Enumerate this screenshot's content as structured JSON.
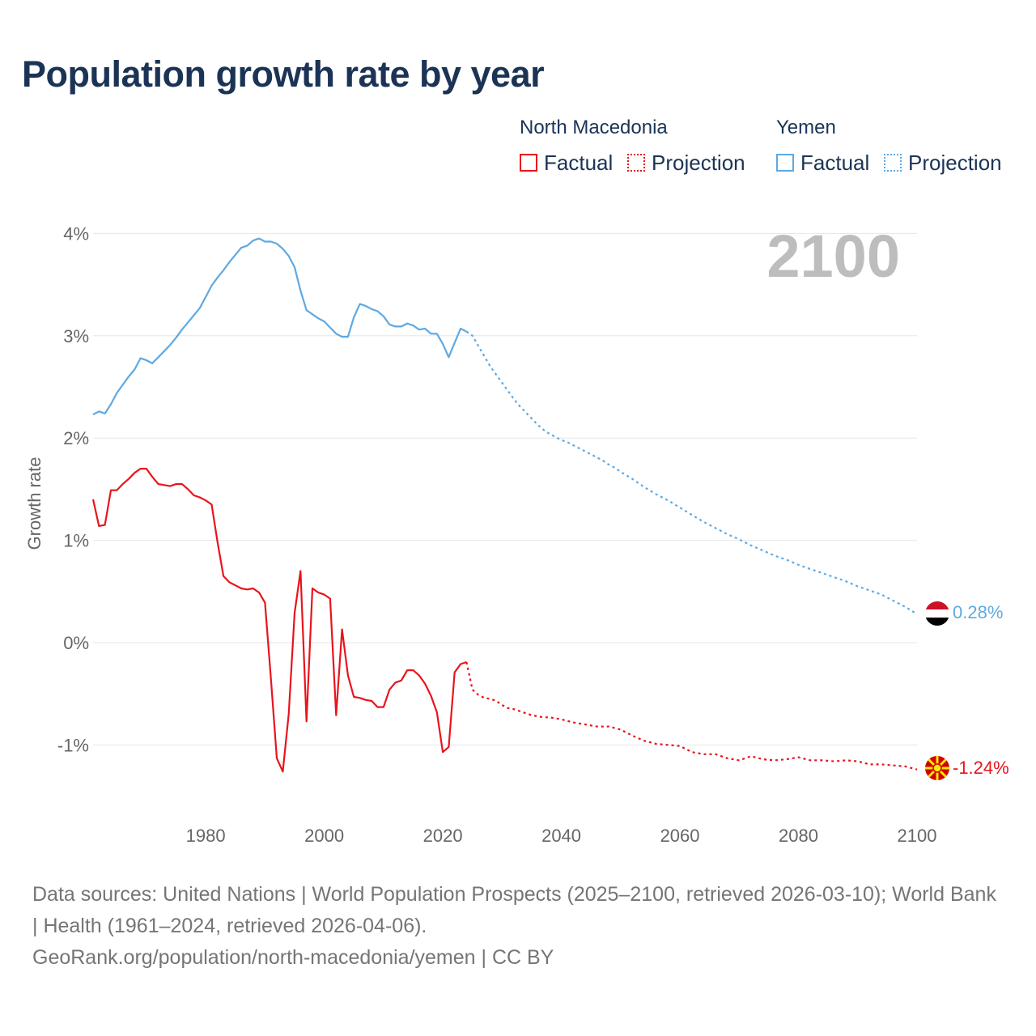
{
  "title": "Population growth rate by year",
  "legend": {
    "groups": [
      {
        "name": "North Macedonia",
        "factual_label": "Factual",
        "projection_label": "Projection"
      },
      {
        "name": "Yemen",
        "factual_label": "Factual",
        "projection_label": "Projection"
      }
    ]
  },
  "footer": {
    "sources": "Data sources: United Nations | World Population Prospects (2025–2100, retrieved 2026-03-10); World Bank | Health (1961–2024, retrieved 2026-04-06).",
    "link": "GeoRank.org/population/north-macedonia/yemen | CC BY"
  },
  "chart_data": {
    "type": "line",
    "title": "Population growth rate by year",
    "xlabel": "",
    "ylabel": "Growth rate",
    "year_watermark": "2100",
    "xlim": [
      1961,
      2100
    ],
    "ylim": [
      -1.6,
      4.2
    ],
    "x_ticks": [
      1980,
      2000,
      2020,
      2040,
      2060,
      2080,
      2100
    ],
    "x_tick_labels": [
      "1980",
      "2000",
      "2020",
      "2040",
      "2060",
      "2080",
      "2100"
    ],
    "y_ticks": [
      -1,
      0,
      1,
      2,
      3,
      4
    ],
    "y_tick_labels": [
      "-1%",
      "0%",
      "1%",
      "2%",
      "3%",
      "4%"
    ],
    "grid": true,
    "colors": {
      "north_macedonia": "#e8141c",
      "yemen": "#5ea9e2",
      "watermark": "#bdbdbd",
      "axis_text": "#666666",
      "grid": "#e6e6e6"
    },
    "series": [
      {
        "name": "Yemen",
        "key": "yemen",
        "end_label": "0.28%",
        "factual": {
          "x": [
            1961,
            1962,
            1963,
            1964,
            1965,
            1966,
            1967,
            1968,
            1969,
            1970,
            1971,
            1972,
            1973,
            1974,
            1975,
            1976,
            1977,
            1978,
            1979,
            1980,
            1981,
            1982,
            1983,
            1984,
            1985,
            1986,
            1987,
            1988,
            1989,
            1990,
            1991,
            1992,
            1993,
            1994,
            1995,
            1996,
            1997,
            1998,
            1999,
            2000,
            2001,
            2002,
            2003,
            2004,
            2005,
            2006,
            2007,
            2008,
            2009,
            2010,
            2011,
            2012,
            2013,
            2014,
            2015,
            2016,
            2017,
            2018,
            2019,
            2020,
            2021,
            2022,
            2023,
            2024
          ],
          "y": [
            2.23,
            2.26,
            2.24,
            2.33,
            2.44,
            2.52,
            2.6,
            2.67,
            2.78,
            2.76,
            2.73,
            2.79,
            2.85,
            2.91,
            2.98,
            3.06,
            3.13,
            3.2,
            3.27,
            3.38,
            3.49,
            3.57,
            3.64,
            3.72,
            3.79,
            3.86,
            3.88,
            3.93,
            3.95,
            3.92,
            3.92,
            3.9,
            3.85,
            3.78,
            3.67,
            3.44,
            3.25,
            3.21,
            3.17,
            3.14,
            3.08,
            3.02,
            2.99,
            2.99,
            3.18,
            3.31,
            3.29,
            3.26,
            3.24,
            3.19,
            3.11,
            3.09,
            3.09,
            3.12,
            3.1,
            3.06,
            3.07,
            3.02,
            3.02,
            2.92,
            2.79,
            2.93,
            3.07,
            3.04
          ]
        },
        "projection": {
          "x": [
            2024,
            2025,
            2026,
            2027,
            2028,
            2029,
            2030,
            2031,
            2032,
            2033,
            2034,
            2035,
            2036,
            2037,
            2038,
            2039,
            2040,
            2041,
            2042,
            2043,
            2044,
            2045,
            2046,
            2047,
            2048,
            2049,
            2050,
            2052,
            2054,
            2056,
            2058,
            2060,
            2062,
            2064,
            2066,
            2068,
            2070,
            2072,
            2074,
            2076,
            2078,
            2080,
            2082,
            2084,
            2086,
            2088,
            2090,
            2092,
            2094,
            2096,
            2098,
            2100
          ],
          "y": [
            3.04,
            3.0,
            2.9,
            2.8,
            2.7,
            2.62,
            2.54,
            2.46,
            2.38,
            2.31,
            2.25,
            2.19,
            2.13,
            2.08,
            2.04,
            2.01,
            1.98,
            1.96,
            1.93,
            1.9,
            1.87,
            1.84,
            1.81,
            1.78,
            1.74,
            1.71,
            1.67,
            1.6,
            1.52,
            1.45,
            1.39,
            1.32,
            1.25,
            1.18,
            1.12,
            1.06,
            1.01,
            0.95,
            0.9,
            0.85,
            0.81,
            0.76,
            0.72,
            0.68,
            0.64,
            0.6,
            0.55,
            0.51,
            0.47,
            0.41,
            0.35,
            0.28
          ]
        }
      },
      {
        "name": "North Macedonia",
        "key": "north_macedonia",
        "end_label": "-1.24%",
        "factual": {
          "x": [
            1961,
            1962,
            1963,
            1964,
            1965,
            1966,
            1967,
            1968,
            1969,
            1970,
            1971,
            1972,
            1973,
            1974,
            1975,
            1976,
            1977,
            1978,
            1979,
            1980,
            1981,
            1982,
            1983,
            1984,
            1985,
            1986,
            1987,
            1988,
            1989,
            1990,
            1991,
            1992,
            1993,
            1994,
            1995,
            1996,
            1997,
            1998,
            1999,
            2000,
            2001,
            2002,
            2003,
            2004,
            2005,
            2006,
            2007,
            2008,
            2009,
            2010,
            2011,
            2012,
            2013,
            2014,
            2015,
            2016,
            2017,
            2018,
            2019,
            2020,
            2021,
            2022,
            2023,
            2024
          ],
          "y": [
            1.4,
            1.14,
            1.15,
            1.49,
            1.49,
            1.55,
            1.6,
            1.66,
            1.7,
            1.7,
            1.62,
            1.55,
            1.54,
            1.53,
            1.55,
            1.55,
            1.5,
            1.44,
            1.42,
            1.39,
            1.35,
            0.98,
            0.65,
            0.59,
            0.56,
            0.53,
            0.52,
            0.53,
            0.49,
            0.39,
            -0.35,
            -1.13,
            -1.26,
            -0.7,
            0.29,
            0.7,
            -0.77,
            0.53,
            0.49,
            0.47,
            0.43,
            -0.71,
            0.13,
            -0.32,
            -0.53,
            -0.54,
            -0.56,
            -0.57,
            -0.63,
            -0.63,
            -0.46,
            -0.39,
            -0.37,
            -0.27,
            -0.27,
            -0.32,
            -0.4,
            -0.52,
            -0.68,
            -1.07,
            -1.02,
            -0.29,
            -0.21,
            -0.19
          ]
        },
        "projection": {
          "x": [
            2024,
            2025,
            2026,
            2027,
            2028,
            2029,
            2030,
            2031,
            2032,
            2033,
            2034,
            2035,
            2036,
            2037,
            2038,
            2039,
            2040,
            2042,
            2044,
            2046,
            2048,
            2050,
            2052,
            2054,
            2056,
            2058,
            2060,
            2062,
            2064,
            2066,
            2068,
            2070,
            2072,
            2074,
            2076,
            2078,
            2080,
            2082,
            2084,
            2086,
            2088,
            2090,
            2092,
            2094,
            2096,
            2098,
            2100
          ],
          "y": [
            -0.19,
            -0.46,
            -0.51,
            -0.54,
            -0.55,
            -0.57,
            -0.61,
            -0.64,
            -0.65,
            -0.67,
            -0.69,
            -0.71,
            -0.72,
            -0.73,
            -0.73,
            -0.74,
            -0.75,
            -0.78,
            -0.8,
            -0.82,
            -0.82,
            -0.85,
            -0.91,
            -0.96,
            -0.99,
            -1.0,
            -1.01,
            -1.07,
            -1.09,
            -1.09,
            -1.13,
            -1.15,
            -1.11,
            -1.14,
            -1.15,
            -1.14,
            -1.12,
            -1.15,
            -1.15,
            -1.16,
            -1.15,
            -1.16,
            -1.19,
            -1.19,
            -1.2,
            -1.21,
            -1.24
          ]
        }
      }
    ]
  }
}
